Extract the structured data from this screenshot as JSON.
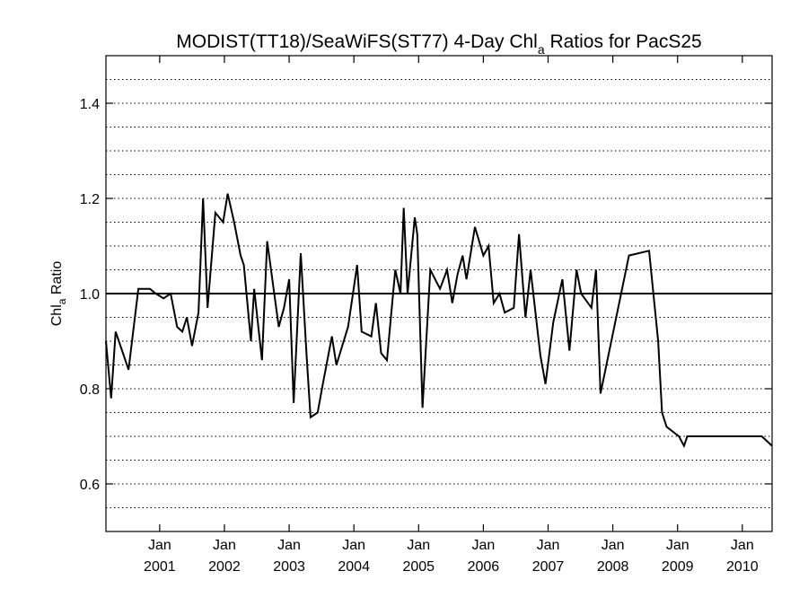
{
  "chart_data": {
    "type": "line",
    "title": {
      "main": "MODIST(TT18)/SeaWiFS(ST77) 4-Day Chl",
      "sub": "a",
      "tail": " Ratios for PacS25"
    },
    "ylabel": {
      "main": "Chl",
      "sub": "a",
      "tail": " Ratio"
    },
    "xlabel": "",
    "xlim": [
      2000.17,
      2010.46
    ],
    "ylim": [
      0.5,
      1.5
    ],
    "y_ticks": [
      0.6,
      0.8,
      1.0,
      1.2,
      1.4
    ],
    "y_tick_labels": [
      "0.6",
      "0.8",
      "1.0",
      "1.2",
      "1.4"
    ],
    "y_gridlines": [
      0.55,
      0.6,
      0.65,
      0.7,
      0.75,
      0.8,
      0.85,
      0.9,
      0.95,
      1.0,
      1.05,
      1.1,
      1.15,
      1.2,
      1.25,
      1.3,
      1.35,
      1.4,
      1.45
    ],
    "x_ticks": [
      2001,
      2002,
      2003,
      2004,
      2005,
      2006,
      2007,
      2008,
      2009,
      2010
    ],
    "x_tick_labels": [
      {
        "month": "Jan",
        "year": "2001"
      },
      {
        "month": "Jan",
        "year": "2002"
      },
      {
        "month": "Jan",
        "year": "2003"
      },
      {
        "month": "Jan",
        "year": "2004"
      },
      {
        "month": "Jan",
        "year": "2005"
      },
      {
        "month": "Jan",
        "year": "2006"
      },
      {
        "month": "Jan",
        "year": "2007"
      },
      {
        "month": "Jan",
        "year": "2008"
      },
      {
        "month": "Jan",
        "year": "2009"
      },
      {
        "month": "Jan",
        "year": "2010"
      }
    ],
    "reference_line": 1.0,
    "grid": "horizontal dotted",
    "series": [
      {
        "x": [
          2000.17,
          2000.25,
          2000.32,
          2000.42,
          2000.52,
          2000.67,
          2000.85,
          2000.94,
          2001.06,
          2001.17,
          2001.27,
          2001.35,
          2001.42,
          2001.5,
          2001.6,
          2001.67,
          2001.74,
          2001.86,
          2001.98,
          2002.05,
          2002.15,
          2002.25,
          2002.3,
          2002.41,
          2002.46,
          2002.58,
          2002.66,
          2002.84,
          2002.92,
          2003.0,
          2003.07,
          2003.18,
          2003.27,
          2003.33,
          2003.44,
          2003.52,
          2003.66,
          2003.73,
          2003.91,
          2004.05,
          2004.12,
          2004.27,
          2004.34,
          2004.42,
          2004.51,
          2004.64,
          2004.72,
          2004.77,
          2004.83,
          2004.94,
          2004.98,
          2005.06,
          2005.18,
          2005.33,
          2005.44,
          2005.52,
          2005.6,
          2005.68,
          2005.74,
          2005.87,
          2006.0,
          2006.08,
          2006.16,
          2006.25,
          2006.33,
          2006.47,
          2006.55,
          2006.65,
          2006.73,
          2006.88,
          2006.96,
          2007.08,
          2007.22,
          2007.33,
          2007.44,
          2007.51,
          2007.67,
          2007.74,
          2007.81,
          2008.25,
          2008.56,
          2008.7,
          2008.76,
          2008.83,
          2009.02,
          2009.1,
          2009.15,
          2009.3,
          2009.53,
          2009.69,
          2009.74,
          2009.88,
          2009.96,
          2010.12,
          2010.23,
          2010.3,
          2010.46
        ],
        "y": [
          0.9,
          0.78,
          0.92,
          0.88,
          0.84,
          1.01,
          1.01,
          1.0,
          0.99,
          1.0,
          0.93,
          0.92,
          0.95,
          0.89,
          0.96,
          1.2,
          0.97,
          1.17,
          1.15,
          1.21,
          1.15,
          1.08,
          1.06,
          0.9,
          1.01,
          0.86,
          1.11,
          0.93,
          0.97,
          1.03,
          0.77,
          1.085,
          0.87,
          0.74,
          0.75,
          0.81,
          0.91,
          0.85,
          0.93,
          1.06,
          0.92,
          0.91,
          0.98,
          0.875,
          0.86,
          1.05,
          1.0,
          1.18,
          1.0,
          1.16,
          1.125,
          0.76,
          1.05,
          1.01,
          1.05,
          0.98,
          1.04,
          1.08,
          1.03,
          1.14,
          1.08,
          1.1,
          0.98,
          1.0,
          0.96,
          0.97,
          1.125,
          0.95,
          1.05,
          0.87,
          0.81,
          0.94,
          1.03,
          0.88,
          1.05,
          1.0,
          0.97,
          1.05,
          0.79,
          1.08,
          1.09,
          0.9,
          0.75,
          0.72,
          0.7,
          0.68,
          0.7,
          0.7,
          0.7,
          0.7,
          0.7,
          0.7,
          0.7,
          0.7,
          0.7,
          0.7,
          0.68
        ]
      }
    ]
  }
}
